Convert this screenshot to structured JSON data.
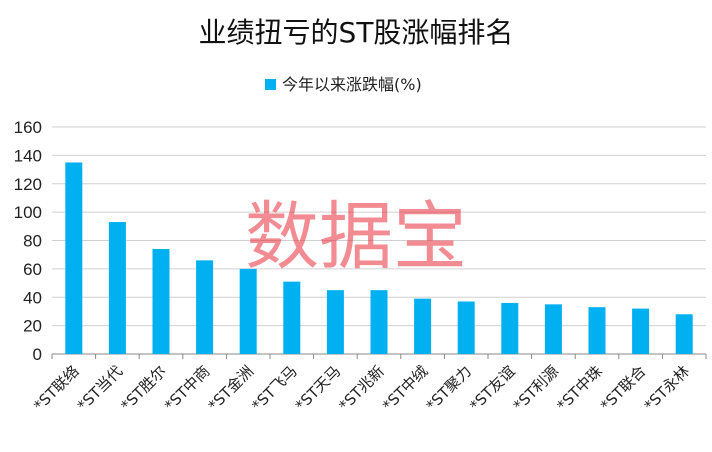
{
  "colors": {
    "bar": "#00b0f0",
    "grid": "#d0d0d0",
    "axis": "#888888",
    "watermark": "#e8303a"
  },
  "watermark": "数据宝",
  "chart_data": {
    "type": "bar",
    "title": "业绩扭亏的ST股涨幅排名",
    "legend": "top",
    "grid": true,
    "ylim": [
      0,
      160
    ],
    "yticks": [
      0,
      20,
      40,
      60,
      80,
      100,
      120,
      140,
      160
    ],
    "categories": [
      "*ST联络",
      "*ST当代",
      "*ST胜尔",
      "*ST中商",
      "*ST金洲",
      "*ST飞马",
      "*ST天马",
      "*ST兆新",
      "*ST中绒",
      "*ST聚力",
      "*ST友谊",
      "*ST利源",
      "*ST中珠",
      "*ST联合",
      "*ST永林"
    ],
    "series": [
      {
        "name": "今年以来涨跌幅(%)",
        "values": [
          135,
          93,
          74,
          66,
          60,
          51,
          45,
          45,
          39,
          37,
          36,
          35,
          33,
          32,
          28
        ]
      }
    ]
  }
}
